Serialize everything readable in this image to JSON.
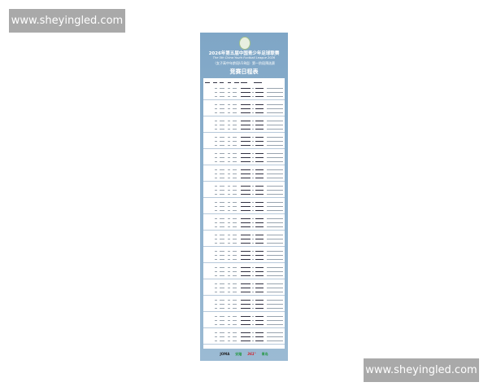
{
  "watermarks": [
    "www.sheyingled.com",
    "www.sheyingled.com"
  ],
  "poster": {
    "title": "2026年第五届中国青少年足球联赛",
    "subtitle_en": "The 5th China Youth Football League 2026",
    "subtitle_cn": "（女子高中年龄段U18组）第一阶段预选赛",
    "heading": "竞赛日程表",
    "sponsors": [
      "JOMA",
      "安踏",
      "361°",
      "青岛"
    ],
    "colors": {
      "background": "#8cb0cd",
      "table": "#ffffff",
      "sponsor_colors": [
        "#222222",
        "#2a9a4a",
        "#d0202a",
        "#2a9a4a"
      ]
    }
  }
}
